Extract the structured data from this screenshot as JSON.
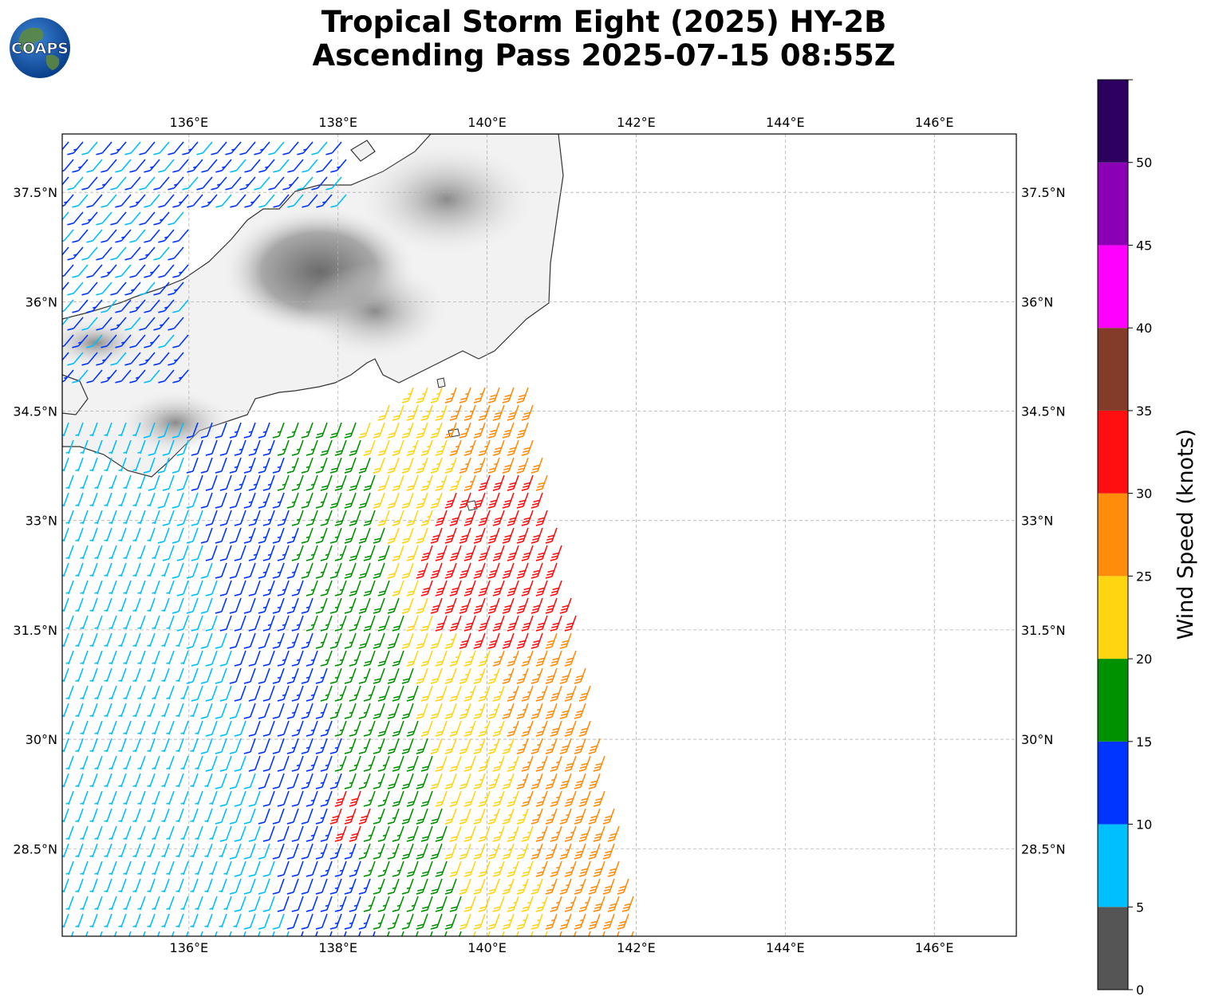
{
  "title": {
    "line1": "Tropical Storm Eight (2025) HY-2B",
    "line2": "Ascending Pass 2025-07-15 08:55Z"
  },
  "logo": {
    "text": "COAPS",
    "icon": "globe-icon"
  },
  "map": {
    "lon_range": [
      134.3,
      147.1
    ],
    "lat_range": [
      27.3,
      38.3
    ],
    "lon_ticks": [
      "136°E",
      "138°E",
      "140°E",
      "142°E",
      "144°E",
      "146°E"
    ],
    "lat_ticks": [
      "37.5°N",
      "36°N",
      "34.5°N",
      "33°N",
      "31.5°N",
      "30°N",
      "28.5°N"
    ],
    "gridlines": true,
    "land_shading": "grayscale-terrain",
    "coastline_color": "#333333"
  },
  "swath": {
    "description_units": "knots",
    "dominant_direction": "from south-southwest",
    "max_wind_knots": 35
  },
  "colorbar": {
    "label": "Wind Speed (knots)",
    "tick_labels": [
      "0",
      "5",
      "10",
      "15",
      "20",
      "25",
      "30",
      "35",
      "40",
      "45",
      "50"
    ],
    "bins": [
      {
        "from": 0,
        "to": 5,
        "color": "#555555"
      },
      {
        "from": 5,
        "to": 10,
        "color": "#00bfff"
      },
      {
        "from": 10,
        "to": 15,
        "color": "#0035ff"
      },
      {
        "from": 15,
        "to": 20,
        "color": "#009100"
      },
      {
        "from": 20,
        "to": 25,
        "color": "#ffd411"
      },
      {
        "from": 25,
        "to": 30,
        "color": "#ff8c0b"
      },
      {
        "from": 30,
        "to": 35,
        "color": "#ff0f0f"
      },
      {
        "from": 35,
        "to": 40,
        "color": "#843c2a"
      },
      {
        "from": 40,
        "to": 45,
        "color": "#ff00ff"
      },
      {
        "from": 45,
        "to": 50,
        "color": "#8c00b5"
      },
      {
        "from": 50,
        "to": 55,
        "color": "#2d005f"
      }
    ]
  }
}
